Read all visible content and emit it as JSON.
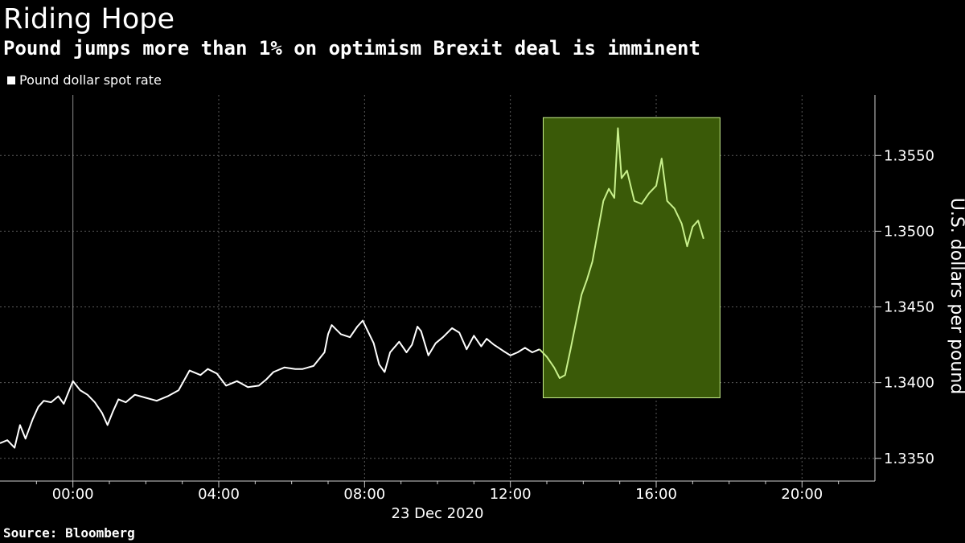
{
  "chart_data": {
    "type": "line",
    "title": "Riding Hope",
    "subtitle": "Pound jumps more than 1% on optimism Brexit deal is imminent",
    "legend": [
      {
        "label": "Pound dollar spot rate",
        "color": "#ffffff"
      }
    ],
    "ylabel": "U.S. dollars per pound",
    "xlabel": "23 Dec 2020",
    "source": "Source: Bloomberg",
    "ylim": [
      1.3335,
      1.359
    ],
    "xlim": [
      -2.0,
      22.0
    ],
    "yticks": [
      1.335,
      1.34,
      1.345,
      1.35,
      1.355
    ],
    "ytick_labels": [
      "1.3350",
      "1.3400",
      "1.3450",
      "1.3500",
      "1.3550"
    ],
    "xticks": [
      0,
      4,
      8,
      12,
      16,
      20
    ],
    "xtick_labels": [
      "00:00",
      "04:00",
      "08:00",
      "12:00",
      "16:00",
      "20:00"
    ],
    "x_unit": "hours from 00:00, 23 Dec 2020",
    "grid": true,
    "highlight": {
      "x": [
        12.9,
        17.75
      ],
      "y": [
        1.339,
        1.3575
      ],
      "color": "#3a5a08",
      "line_color": "#c8f08c"
    },
    "series": [
      {
        "name": "Pound dollar spot rate",
        "color": "#ffffff",
        "x": [
          -2.0,
          -1.8,
          -1.6,
          -1.45,
          -1.3,
          -1.1,
          -0.95,
          -0.8,
          -0.6,
          -0.4,
          -0.25,
          -0.1,
          0.0,
          0.2,
          0.4,
          0.6,
          0.8,
          0.95,
          1.1,
          1.25,
          1.45,
          1.7,
          2.0,
          2.3,
          2.6,
          2.9,
          3.2,
          3.5,
          3.7,
          3.95,
          4.2,
          4.5,
          4.8,
          5.1,
          5.3,
          5.5,
          5.8,
          6.1,
          6.3,
          6.6,
          6.9,
          7.0,
          7.1,
          7.35,
          7.6,
          7.8,
          7.95,
          8.05,
          8.25,
          8.4,
          8.55,
          8.7,
          8.95,
          9.15,
          9.3,
          9.45,
          9.55,
          9.75,
          9.95,
          10.15,
          10.4,
          10.6,
          10.8,
          11.0,
          11.2,
          11.35,
          11.55,
          11.8,
          12.0,
          12.2,
          12.4,
          12.6,
          12.8
        ],
        "values": [
          1.336,
          1.3362,
          1.3357,
          1.3372,
          1.3363,
          1.3376,
          1.3384,
          1.3388,
          1.3387,
          1.3391,
          1.3386,
          1.3395,
          1.3401,
          1.3395,
          1.3392,
          1.3387,
          1.338,
          1.3372,
          1.3381,
          1.3389,
          1.3387,
          1.3392,
          1.339,
          1.3388,
          1.3391,
          1.3395,
          1.3408,
          1.3405,
          1.3409,
          1.3406,
          1.3398,
          1.3401,
          1.3397,
          1.3398,
          1.3402,
          1.3407,
          1.341,
          1.3409,
          1.3409,
          1.3411,
          1.342,
          1.3432,
          1.3438,
          1.3432,
          1.343,
          1.3437,
          1.3441,
          1.3436,
          1.3426,
          1.3412,
          1.3407,
          1.342,
          1.3427,
          1.342,
          1.3425,
          1.3437,
          1.3434,
          1.3418,
          1.3426,
          1.343,
          1.3436,
          1.3433,
          1.3422,
          1.3431,
          1.3424,
          1.3429,
          1.3425,
          1.3421,
          1.3418,
          1.342,
          1.3423,
          1.342,
          1.3422
        ]
      },
      {
        "name": "Pound dollar spot rate (highlighted)",
        "color": "#c8f08c",
        "x": [
          12.8,
          13.0,
          13.2,
          13.35,
          13.5,
          13.65,
          13.8,
          13.95,
          14.1,
          14.25,
          14.4,
          14.55,
          14.7,
          14.85,
          14.95,
          15.05,
          15.2,
          15.4,
          15.6,
          15.8,
          16.0,
          16.15,
          16.3,
          16.5,
          16.7,
          16.85,
          17.0,
          17.15,
          17.3
        ],
        "values": [
          1.3422,
          1.3417,
          1.341,
          1.3403,
          1.3405,
          1.3422,
          1.344,
          1.3458,
          1.3468,
          1.348,
          1.35,
          1.352,
          1.3528,
          1.3522,
          1.3568,
          1.3535,
          1.354,
          1.352,
          1.3518,
          1.3525,
          1.353,
          1.3548,
          1.352,
          1.3515,
          1.3505,
          1.349,
          1.3503,
          1.3507,
          1.3495
        ]
      }
    ]
  }
}
